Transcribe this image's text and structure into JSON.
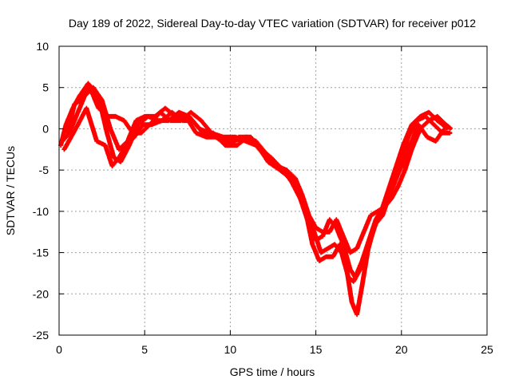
{
  "chart_data": {
    "type": "scatter",
    "title": "Day 189 of 2022, Sidereal Day-to-day VTEC variation (SDTVAR) for receiver p012",
    "xlabel": "GPS time / hours",
    "ylabel": "SDTVAR / TECUs",
    "xlim": [
      0,
      25
    ],
    "ylim": [
      -25,
      10
    ],
    "xticks": [
      0,
      5,
      10,
      15,
      20,
      25
    ],
    "yticks": [
      -25,
      -20,
      -15,
      -10,
      -5,
      0,
      5,
      10
    ],
    "grid": true,
    "series_color": "#ff0000",
    "series": [
      {
        "points": [
          [
            0.1,
            -2.0
          ],
          [
            0.4,
            0.5
          ],
          [
            0.8,
            2.5
          ],
          [
            1.2,
            4.0
          ],
          [
            1.7,
            5.5
          ],
          [
            2.1,
            4.5
          ],
          [
            2.4,
            3.0
          ],
          [
            2.8,
            -0.5
          ],
          [
            3.2,
            -3.5
          ],
          [
            3.6,
            -4.0
          ],
          [
            4.1,
            -2.0
          ],
          [
            4.6,
            0.5
          ],
          [
            5.2,
            1.5
          ],
          [
            5.8,
            1.0
          ],
          [
            6.4,
            1.0
          ],
          [
            7.0,
            2.0
          ],
          [
            7.6,
            1.5
          ],
          [
            8.2,
            0.0
          ],
          [
            8.8,
            -0.5
          ],
          [
            9.5,
            -1.5
          ],
          [
            10.2,
            -1.5
          ],
          [
            10.9,
            -1.0
          ],
          [
            11.5,
            -1.5
          ],
          [
            12.1,
            -3.0
          ],
          [
            12.8,
            -4.5
          ],
          [
            13.4,
            -5.5
          ],
          [
            13.9,
            -7.0
          ],
          [
            14.3,
            -9.0
          ],
          [
            14.7,
            -11.5
          ],
          [
            15.0,
            -13.5
          ],
          [
            15.4,
            -13.0
          ],
          [
            15.8,
            -11.0
          ],
          [
            16.2,
            -12.0
          ],
          [
            16.6,
            -14.0
          ],
          [
            17.0,
            -17.0
          ],
          [
            17.3,
            -18.0
          ],
          [
            17.7,
            -16.0
          ],
          [
            18.1,
            -13.5
          ],
          [
            18.5,
            -11.0
          ],
          [
            18.9,
            -9.5
          ],
          [
            19.3,
            -7.0
          ],
          [
            19.7,
            -4.5
          ],
          [
            20.1,
            -2.0
          ],
          [
            20.6,
            0.5
          ],
          [
            21.1,
            1.5
          ],
          [
            21.6,
            2.0
          ],
          [
            22.1,
            1.0
          ],
          [
            22.7,
            0.0
          ]
        ]
      },
      {
        "points": [
          [
            0.2,
            -1.5
          ],
          [
            0.6,
            -0.5
          ],
          [
            1.0,
            1.5
          ],
          [
            1.5,
            4.0
          ],
          [
            2.0,
            5.0
          ],
          [
            2.5,
            3.5
          ],
          [
            3.0,
            0.0
          ],
          [
            3.5,
            -2.5
          ],
          [
            4.0,
            -1.5
          ],
          [
            4.5,
            1.0
          ],
          [
            5.0,
            1.5
          ],
          [
            5.6,
            1.5
          ],
          [
            6.2,
            2.5
          ],
          [
            6.8,
            1.5
          ],
          [
            7.4,
            1.5
          ],
          [
            8.0,
            -0.5
          ],
          [
            8.6,
            -1.0
          ],
          [
            9.2,
            -1.0
          ],
          [
            9.9,
            -2.0
          ],
          [
            10.5,
            -1.0
          ],
          [
            11.2,
            -1.0
          ],
          [
            11.8,
            -2.5
          ],
          [
            12.4,
            -3.5
          ],
          [
            13.1,
            -5.0
          ],
          [
            13.6,
            -6.5
          ],
          [
            14.1,
            -8.5
          ],
          [
            14.5,
            -11.0
          ],
          [
            14.9,
            -12.5
          ],
          [
            15.3,
            -15.0
          ],
          [
            15.7,
            -14.5
          ],
          [
            16.1,
            -14.0
          ],
          [
            16.5,
            -15.0
          ],
          [
            16.9,
            -18.0
          ],
          [
            17.2,
            -18.5
          ],
          [
            17.6,
            -17.0
          ],
          [
            18.0,
            -15.0
          ],
          [
            18.4,
            -12.0
          ],
          [
            18.8,
            -10.0
          ],
          [
            19.2,
            -8.5
          ],
          [
            19.6,
            -6.5
          ],
          [
            20.0,
            -3.5
          ],
          [
            20.4,
            -1.0
          ],
          [
            20.9,
            1.0
          ],
          [
            21.4,
            1.5
          ],
          [
            21.9,
            0.5
          ],
          [
            22.4,
            -0.5
          ],
          [
            22.9,
            -0.5
          ]
        ]
      },
      {
        "points": [
          [
            0.3,
            -2.5
          ],
          [
            0.7,
            -1.0
          ],
          [
            1.1,
            0.5
          ],
          [
            1.6,
            2.5
          ],
          [
            2.2,
            -1.5
          ],
          [
            2.7,
            -2.0
          ],
          [
            3.1,
            -4.5
          ],
          [
            3.5,
            -3.5
          ],
          [
            3.9,
            -2.0
          ],
          [
            4.4,
            -1.0
          ],
          [
            4.9,
            0.5
          ],
          [
            5.4,
            0.5
          ],
          [
            6.0,
            1.0
          ],
          [
            6.6,
            2.0
          ],
          [
            7.2,
            1.0
          ],
          [
            7.8,
            1.0
          ],
          [
            8.4,
            -0.5
          ],
          [
            9.0,
            -0.5
          ],
          [
            9.7,
            -2.0
          ],
          [
            10.4,
            -2.0
          ],
          [
            11.0,
            -1.0
          ],
          [
            11.6,
            -2.0
          ],
          [
            12.2,
            -4.0
          ],
          [
            12.9,
            -5.0
          ],
          [
            13.5,
            -6.0
          ],
          [
            14.0,
            -8.0
          ],
          [
            14.4,
            -10.0
          ],
          [
            14.8,
            -14.0
          ],
          [
            15.2,
            -16.0
          ],
          [
            15.6,
            -15.5
          ],
          [
            16.0,
            -15.5
          ],
          [
            16.4,
            -14.0
          ],
          [
            16.8,
            -17.0
          ],
          [
            17.1,
            -21.0
          ],
          [
            17.4,
            -22.5
          ],
          [
            17.7,
            -19.0
          ],
          [
            18.1,
            -14.0
          ],
          [
            18.5,
            -11.5
          ],
          [
            18.9,
            -10.5
          ],
          [
            19.3,
            -8.0
          ],
          [
            19.7,
            -6.0
          ],
          [
            20.1,
            -4.0
          ],
          [
            20.6,
            -1.5
          ],
          [
            21.0,
            0.5
          ],
          [
            21.5,
            -1.0
          ],
          [
            22.0,
            -1.5
          ],
          [
            22.5,
            0.0
          ]
        ]
      },
      {
        "points": [
          [
            0.5,
            -0.5
          ],
          [
            0.9,
            3.0
          ],
          [
            1.3,
            3.5
          ],
          [
            1.8,
            5.0
          ],
          [
            2.3,
            2.5
          ],
          [
            2.9,
            1.5
          ],
          [
            3.3,
            1.5
          ],
          [
            3.8,
            1.0
          ],
          [
            4.3,
            -0.5
          ],
          [
            4.8,
            -0.5
          ],
          [
            5.3,
            0.5
          ],
          [
            5.9,
            2.0
          ],
          [
            6.5,
            1.0
          ],
          [
            7.1,
            1.0
          ],
          [
            7.7,
            2.0
          ],
          [
            8.3,
            1.0
          ],
          [
            8.9,
            -0.5
          ],
          [
            9.6,
            -1.0
          ],
          [
            10.3,
            -1.0
          ],
          [
            10.9,
            -1.5
          ],
          [
            11.5,
            -2.0
          ],
          [
            12.1,
            -3.5
          ],
          [
            12.7,
            -4.5
          ],
          [
            13.3,
            -5.0
          ],
          [
            13.8,
            -6.0
          ],
          [
            14.2,
            -8.0
          ],
          [
            14.6,
            -10.5
          ],
          [
            15.0,
            -12.0
          ],
          [
            15.4,
            -12.5
          ],
          [
            15.8,
            -12.5
          ],
          [
            16.2,
            -11.0
          ],
          [
            16.6,
            -13.0
          ],
          [
            17.0,
            -15.0
          ],
          [
            17.4,
            -14.5
          ],
          [
            17.8,
            -12.5
          ],
          [
            18.2,
            -10.5
          ],
          [
            18.6,
            -10.0
          ],
          [
            19.0,
            -9.5
          ],
          [
            19.4,
            -8.5
          ],
          [
            19.8,
            -7.0
          ],
          [
            20.2,
            -5.0
          ],
          [
            20.6,
            -2.5
          ],
          [
            21.1,
            0.0
          ],
          [
            21.6,
            1.0
          ],
          [
            22.1,
            1.5
          ],
          [
            22.6,
            0.5
          ],
          [
            22.9,
            0.0
          ]
        ]
      }
    ]
  }
}
